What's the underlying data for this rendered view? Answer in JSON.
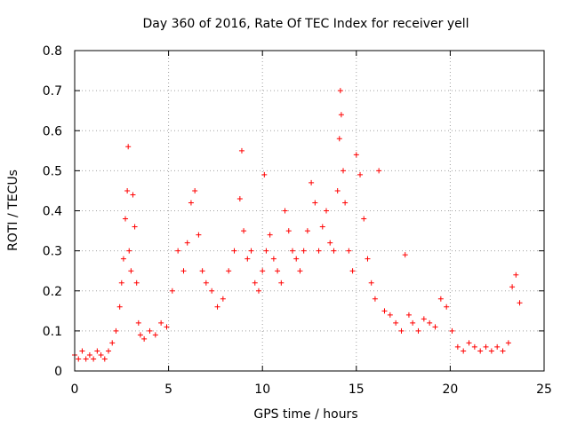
{
  "chart_data": {
    "type": "scatter",
    "title": "Day 360 of 2016, Rate Of TEC Index for receiver yell",
    "xlabel": "GPS time / hours",
    "ylabel": "ROTI / TECUs",
    "xlim": [
      0,
      25
    ],
    "ylim": [
      0,
      0.8
    ],
    "xticks": [
      "0",
      "5",
      "10",
      "15",
      "20",
      "25"
    ],
    "yticks": [
      "0",
      "0.1",
      "0.2",
      "0.3",
      "0.4",
      "0.5",
      "0.6",
      "0.7",
      "0.8"
    ],
    "grid": true,
    "marker": "+",
    "color": "#ff0000",
    "series": [
      {
        "x": [
          0.0,
          0.2,
          0.4,
          0.6,
          0.8,
          1.0,
          1.2,
          1.4,
          1.6,
          1.8,
          2.0,
          2.2,
          2.4,
          2.5,
          2.6,
          2.7,
          2.8,
          2.85,
          2.9,
          3.0,
          3.1,
          3.2,
          3.3,
          3.4,
          3.5,
          3.7,
          4.0,
          4.3,
          4.6,
          4.9,
          5.2,
          5.5,
          5.8,
          6.0,
          6.2,
          6.4,
          6.6,
          6.8,
          7.0,
          7.3,
          7.6,
          7.9,
          8.2,
          8.5,
          8.8,
          8.9,
          9.0,
          9.2,
          9.4,
          9.6,
          9.8,
          10.0,
          10.1,
          10.2,
          10.4,
          10.6,
          10.8,
          11.0,
          11.2,
          11.4,
          11.6,
          11.8,
          12.0,
          12.2,
          12.4,
          12.6,
          12.8,
          13.0,
          13.2,
          13.4,
          13.6,
          13.8,
          14.0,
          14.1,
          14.15,
          14.2,
          14.3,
          14.4,
          14.6,
          14.8,
          15.0,
          15.2,
          15.4,
          15.6,
          15.8,
          16.0,
          16.2,
          16.5,
          16.8,
          17.1,
          17.4,
          17.6,
          17.8,
          18.0,
          18.3,
          18.6,
          18.9,
          19.2,
          19.5,
          19.8,
          20.1,
          20.4,
          20.7,
          21.0,
          21.3,
          21.6,
          21.9,
          22.2,
          22.5,
          22.8,
          23.1,
          23.3,
          23.5,
          23.7
        ],
        "y": [
          0.04,
          0.03,
          0.05,
          0.03,
          0.04,
          0.03,
          0.05,
          0.04,
          0.03,
          0.05,
          0.07,
          0.1,
          0.16,
          0.22,
          0.28,
          0.38,
          0.45,
          0.56,
          0.3,
          0.25,
          0.44,
          0.36,
          0.22,
          0.12,
          0.09,
          0.08,
          0.1,
          0.09,
          0.12,
          0.11,
          0.2,
          0.3,
          0.25,
          0.32,
          0.42,
          0.45,
          0.34,
          0.25,
          0.22,
          0.2,
          0.16,
          0.18,
          0.25,
          0.3,
          0.43,
          0.55,
          0.35,
          0.28,
          0.3,
          0.22,
          0.2,
          0.25,
          0.49,
          0.3,
          0.34,
          0.28,
          0.25,
          0.22,
          0.4,
          0.35,
          0.3,
          0.28,
          0.25,
          0.3,
          0.35,
          0.47,
          0.42,
          0.3,
          0.36,
          0.4,
          0.32,
          0.3,
          0.45,
          0.58,
          0.7,
          0.64,
          0.5,
          0.42,
          0.3,
          0.25,
          0.54,
          0.49,
          0.38,
          0.28,
          0.22,
          0.18,
          0.5,
          0.15,
          0.14,
          0.12,
          0.1,
          0.29,
          0.14,
          0.12,
          0.1,
          0.13,
          0.12,
          0.11,
          0.18,
          0.16,
          0.1,
          0.06,
          0.05,
          0.07,
          0.06,
          0.05,
          0.06,
          0.05,
          0.06,
          0.05,
          0.07,
          0.21,
          0.24,
          0.17
        ]
      }
    ]
  }
}
